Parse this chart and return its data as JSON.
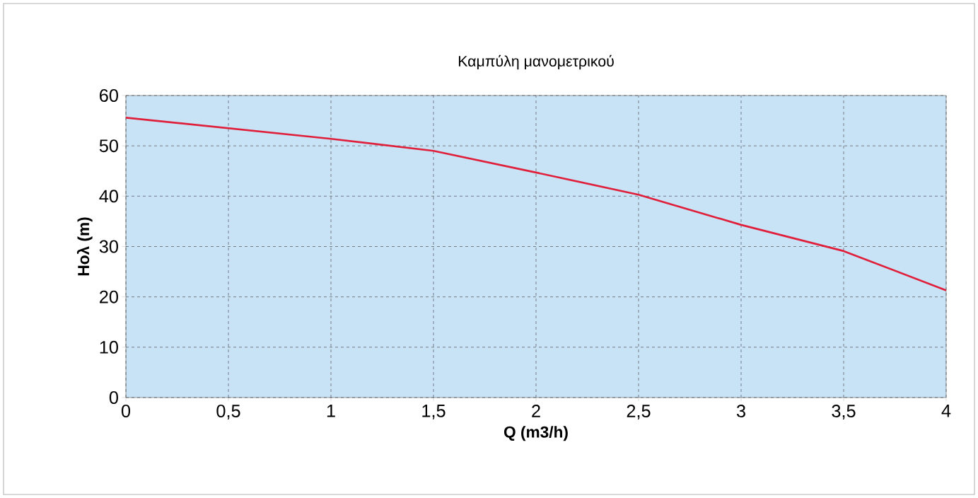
{
  "chart_data": {
    "type": "line",
    "title": "Καμπύλη μανομετρικού",
    "xlabel": "Q (m3/h)",
    "ylabel": "Ηολ (m)",
    "x": [
      0,
      0.5,
      1,
      1.5,
      2,
      2.5,
      3,
      3.5,
      4
    ],
    "series": [
      {
        "color": "#e0203a",
        "values": [
          55.6,
          53.5,
          51.4,
          49.0,
          44.7,
          40.3,
          34.3,
          29.1,
          21.3
        ]
      }
    ],
    "xlim": [
      0,
      4
    ],
    "xticks": [
      0,
      {
        "value": 0.5,
        "label": "0,5"
      },
      1,
      {
        "value": 1.5,
        "label": "1,5"
      },
      2,
      {
        "value": 2.5,
        "label": "2,5"
      },
      3,
      {
        "value": 3.5,
        "label": "3,5"
      },
      4
    ],
    "ylim": [
      0,
      60
    ],
    "yticks": [
      0,
      10,
      20,
      30,
      40,
      50,
      60
    ],
    "grid": true,
    "marker": "none",
    "line_style": "solid"
  }
}
